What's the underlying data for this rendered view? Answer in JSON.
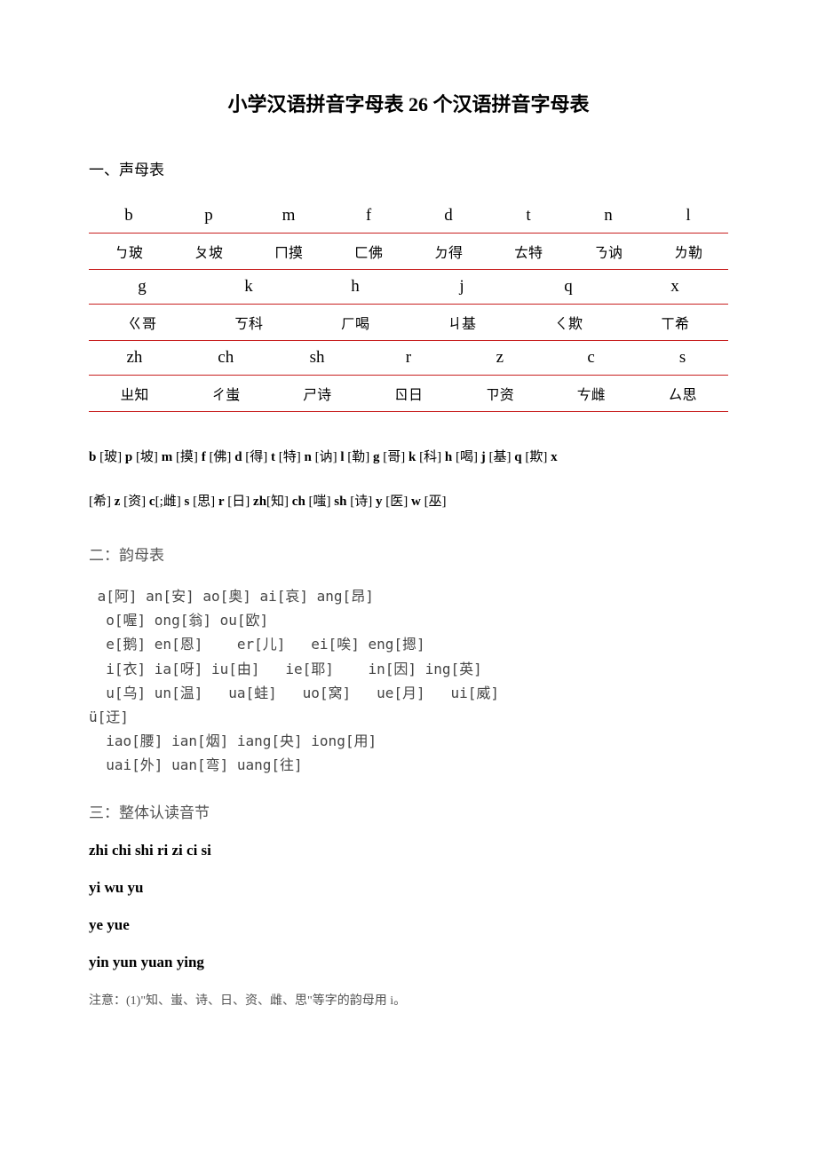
{
  "title": "小学汉语拼音字母表 26 个汉语拼音字母表",
  "section1": {
    "heading": "一、声母表",
    "row1_letters": [
      "b",
      "p",
      "m",
      "f",
      "d",
      "t",
      "n",
      "l"
    ],
    "row1_hanzi": [
      "ㄅ玻",
      "ㄆ坡",
      "ㄇ摸",
      "ㄈ佛",
      "ㄉ得",
      "ㄊ特",
      "ㄋ讷",
      "ㄌ勒"
    ],
    "row2_letters": [
      "g",
      "k",
      "h",
      "j",
      "q",
      "x"
    ],
    "row2_hanzi": [
      "ㄍ哥",
      "ㄎ科",
      "ㄏ喝",
      "ㄐ基",
      "ㄑ欺",
      "ㄒ希"
    ],
    "row3_letters": [
      "zh",
      "ch",
      "sh",
      "r",
      "z",
      "c",
      "s"
    ],
    "row3_hanzi": [
      "ㄓ知",
      "ㄔ蚩",
      "ㄕ诗",
      "ㄖ日",
      "ㄗ资",
      "ㄘ雌",
      "ㄙ思"
    ]
  },
  "phonetic_description": {
    "line1_parts": [
      {
        "b": "b",
        "t": " [玻] "
      },
      {
        "b": "p",
        "t": " [坡] "
      },
      {
        "b": "m",
        "t": " [摸] "
      },
      {
        "b": "f",
        "t": " [佛]   "
      },
      {
        "b": "d",
        "t": " [得] "
      },
      {
        "b": "t",
        "t": " [特] "
      },
      {
        "b": "n",
        "t": " [讷] "
      },
      {
        "b": "l",
        "t": " [勒] "
      },
      {
        "b": "g",
        "t": " [哥] "
      },
      {
        "b": "k",
        "t": " [科] "
      },
      {
        "b": "h",
        "t": " [喝]  "
      },
      {
        "b": "j",
        "t": " [基] "
      },
      {
        "b": "q",
        "t": " [欺]   "
      },
      {
        "b": "x",
        "t": ""
      }
    ],
    "line2_parts": [
      {
        "b": "",
        "t": "[希] "
      },
      {
        "b": "z",
        "t": " [资] "
      },
      {
        "b": "c",
        "t": "[;雌] "
      },
      {
        "b": "s",
        "t": " [思] "
      },
      {
        "b": "r",
        "t": " [日] "
      },
      {
        "b": "zh",
        "t": "[知] "
      },
      {
        "b": "ch",
        "t": " [嗤] "
      },
      {
        "b": "sh",
        "t": " [诗]  "
      },
      {
        "b": "y",
        "t": " [医] "
      },
      {
        "b": "w",
        "t": " [巫]"
      }
    ]
  },
  "section2": {
    "heading": "二：韵母表",
    "lines": " a[阿] an[安] ao[奥] ai[哀] ang[昂]\n  o[喔] ong[翁] ou[欧]\n  e[鹅] en[恩]    er[儿]   ei[唉] eng[摁]\n  i[衣] ia[呀] iu[由]   ie[耶]    in[因] ing[英]\n  u[乌] un[温]   ua[蛙]   uo[窝]   ue[月]   ui[威]\nü[迂]\n  iao[腰] ian[烟] iang[央] iong[用]\n  uai[外] uan[弯] uang[往]"
  },
  "section3": {
    "heading": "三：整体认读音节",
    "line1": " zhi  chi  shi  ri  zi  ci  si",
    "line2": " yi  wu  yu",
    "line3": " ye  yue",
    "line4": " yin  yun  yuan  ying"
  },
  "note": "注意：(1)\"知、蚩、诗、日、资、雌、思\"等字的韵母用 i。",
  "colors": {
    "border": "#c82020",
    "text": "#000000",
    "gray_text": "#555555",
    "background": "#ffffff"
  }
}
